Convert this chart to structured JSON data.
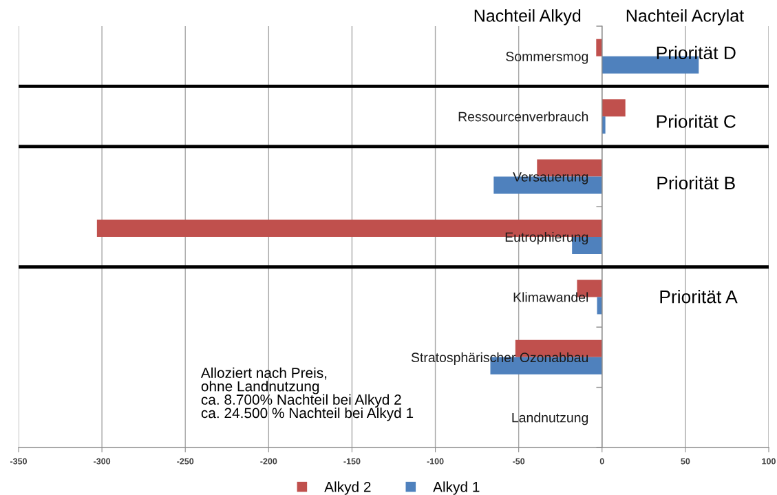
{
  "chart_data": {
    "type": "bar",
    "orientation": "horizontal",
    "categories": [
      "Sommersmog",
      "Ressourcenverbrauch",
      "Versauerung",
      "Eutrophierung",
      "Klimawandel",
      "Stratosphärischer Ozonabbau",
      "Landnutzung"
    ],
    "series": [
      {
        "name": "Alkyd 2",
        "color": "#c0504d",
        "values": [
          -3.5,
          14,
          -39,
          -303,
          -15,
          -52,
          null
        ]
      },
      {
        "name": "Alkyd 1",
        "color": "#4f81bd",
        "values": [
          58,
          2,
          -65,
          -18,
          -3,
          -67,
          null
        ]
      }
    ],
    "xlim": [
      -350,
      100
    ],
    "xticks": [
      -350,
      -300,
      -250,
      -200,
      -150,
      -100,
      -50,
      0,
      50,
      100
    ],
    "grid": "x",
    "legend": "bottom",
    "annotations": [
      "Nachteil Alkyd",
      "Nachteil Acrylat",
      "Priorität D",
      "Priorität C",
      "Priorität B",
      "Priorität A",
      "Alloziert nach Preis,\nohne Landnutzung\nca. 8.700% Nachteil bei Alkyd 2\nca. 24.500 % Nachteil bei Alkyd 1"
    ]
  }
}
